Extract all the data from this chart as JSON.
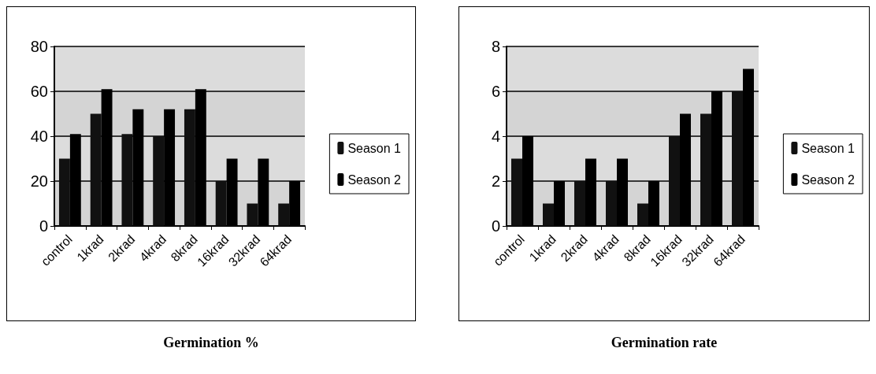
{
  "chart_data": [
    {
      "type": "bar",
      "title": "Germination %",
      "categories": [
        "control",
        "1krad",
        "2krad",
        "4krad",
        "8krad",
        "16krad",
        "32krad",
        "64krad"
      ],
      "series": [
        {
          "name": "Season 1",
          "color": "#111111",
          "values": [
            30,
            50,
            41,
            40,
            52,
            20,
            10,
            10
          ]
        },
        {
          "name": "Season 2",
          "color": "#000000",
          "values": [
            41,
            61,
            52,
            52,
            61,
            30,
            30,
            20
          ]
        }
      ],
      "ylim": [
        0,
        80
      ],
      "yticks": [
        0,
        20,
        40,
        60,
        80
      ],
      "grid": "y",
      "legend": "right"
    },
    {
      "type": "bar",
      "title": "Germination rate",
      "categories": [
        "control",
        "1krad",
        "2krad",
        "4krad",
        "8krad",
        "16krad",
        "32krad",
        "64krad"
      ],
      "series": [
        {
          "name": "Season 1",
          "color": "#111111",
          "values": [
            3,
            1,
            2,
            2,
            1,
            4,
            5,
            6
          ]
        },
        {
          "name": "Season 2",
          "color": "#000000",
          "values": [
            4,
            2,
            3,
            3,
            2,
            5,
            6,
            7
          ]
        }
      ],
      "ylim": [
        0,
        8
      ],
      "yticks": [
        0,
        2,
        4,
        6,
        8
      ],
      "grid": "y",
      "legend": "right"
    }
  ]
}
